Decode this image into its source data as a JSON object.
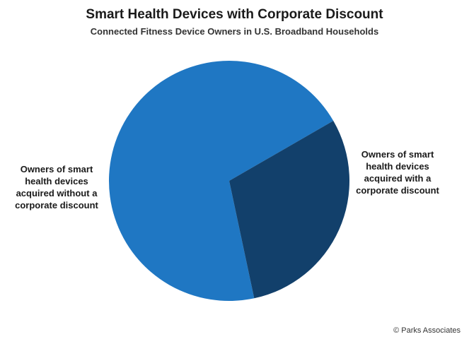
{
  "chart_data": {
    "type": "pie",
    "title": "Smart Health Devices with Corporate Discount",
    "subtitle": "Connected Fitness Device Owners in U.S. Broadband Households",
    "categories": [
      "Owners of smart health devices acquired without a corporate discount",
      "Owners of smart health devices acquired with a corporate discount"
    ],
    "values": [
      70,
      30
    ],
    "colors": [
      "#1f77c3",
      "#12406b"
    ],
    "start_angle_deg": 30,
    "legend": "none"
  },
  "labels": {
    "without": "Owners of smart\nhealth devices\nacquired without a\ncorporate discount",
    "with": "Owners of smart\nhealth devices\nacquired with a\ncorporate discount"
  },
  "footer": {
    "copyright": "© Parks Associates"
  }
}
